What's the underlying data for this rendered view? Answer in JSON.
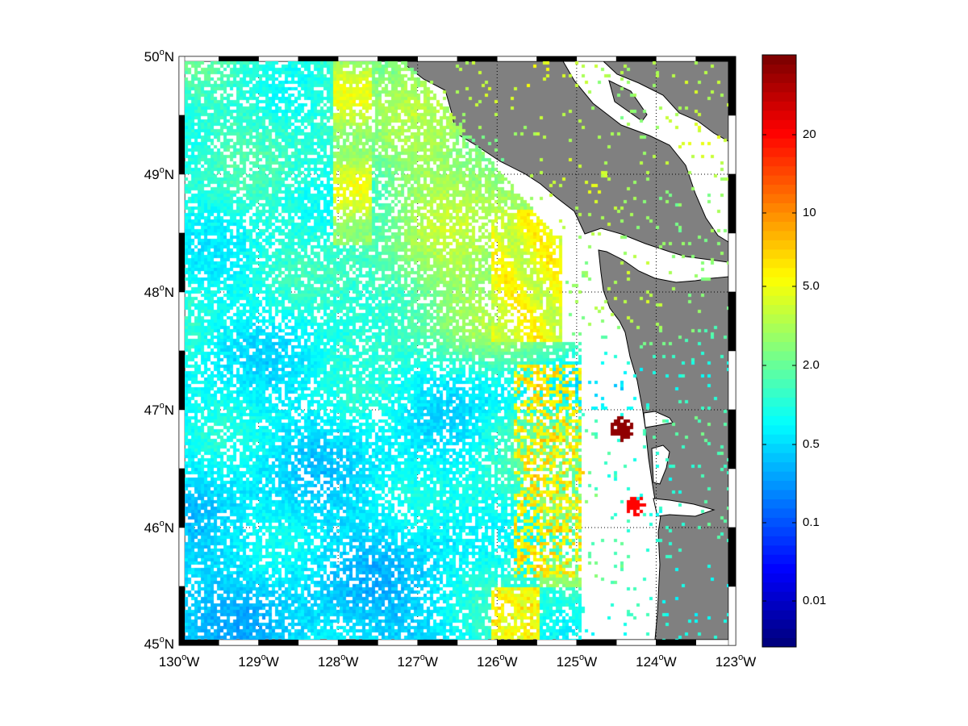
{
  "figure": {
    "projection_frame": "fancy",
    "land_color": "#808080",
    "missing_color": "#ffffff",
    "colormap": "jet",
    "colormap_levels": 64
  },
  "axes": {
    "lon_range": [
      -130,
      -123
    ],
    "lat_range": [
      45,
      50
    ],
    "lon_labels": [
      {
        "deg": "130",
        "hem": "W"
      },
      {
        "deg": "129",
        "hem": "W"
      },
      {
        "deg": "128",
        "hem": "W"
      },
      {
        "deg": "127",
        "hem": "W"
      },
      {
        "deg": "126",
        "hem": "W"
      },
      {
        "deg": "125",
        "hem": "W"
      },
      {
        "deg": "124",
        "hem": "W"
      },
      {
        "deg": "123",
        "hem": "W"
      }
    ],
    "lat_labels": [
      {
        "deg": "45",
        "hem": "N"
      },
      {
        "deg": "46",
        "hem": "N"
      },
      {
        "deg": "47",
        "hem": "N"
      },
      {
        "deg": "48",
        "hem": "N"
      },
      {
        "deg": "49",
        "hem": "N"
      },
      {
        "deg": "50",
        "hem": "N"
      }
    ],
    "degree_symbol": "o",
    "grid": "dotted, 1 degree"
  },
  "colorbar": {
    "tick_labels": [
      "0.01",
      "0.1",
      "0.5",
      "2.0",
      "5.0",
      "10",
      "20"
    ]
  },
  "features": {
    "high_values": [
      {
        "lon": -124.45,
        "lat": 46.85,
        "level": "darkest red (top of scale)"
      },
      {
        "lon": -124.28,
        "lat": 46.2,
        "level": "red (~20)"
      }
    ]
  }
}
